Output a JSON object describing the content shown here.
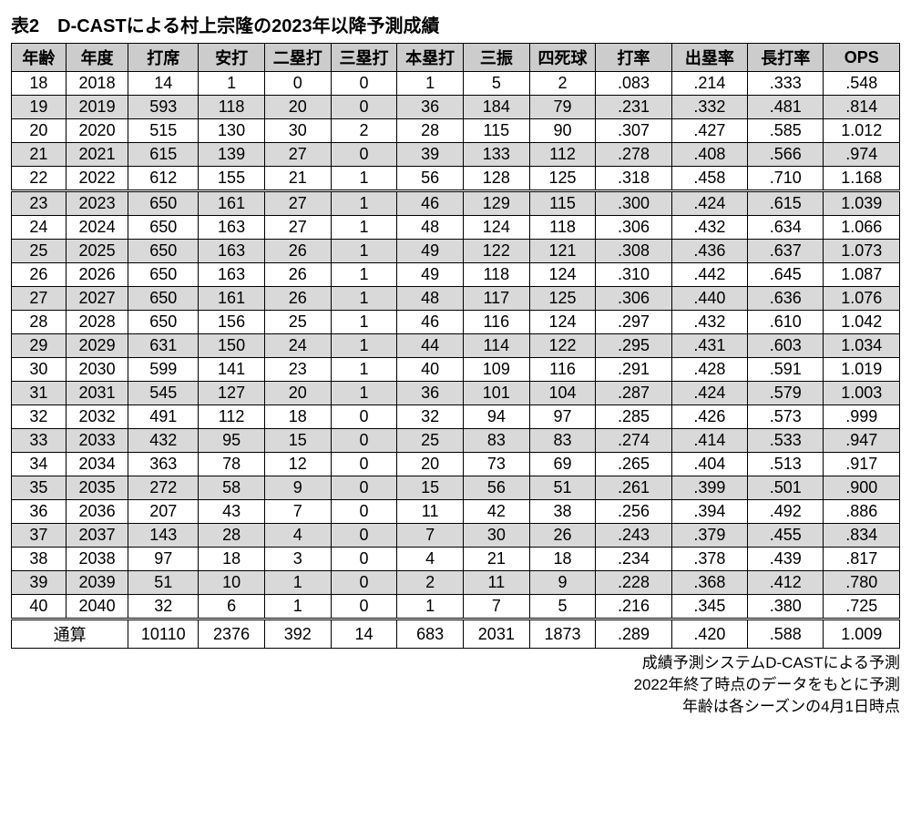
{
  "title": "表2　D-CASTによる村上宗隆の2023年以降予測成績",
  "columns": [
    "年齢",
    "年度",
    "打席",
    "安打",
    "二塁打",
    "三塁打",
    "本塁打",
    "三振",
    "四死球",
    "打率",
    "出塁率",
    "長打率",
    "OPS"
  ],
  "colClasses": [
    "age",
    "year",
    "pa",
    "num",
    "num",
    "num",
    "num",
    "num",
    "num",
    "rate",
    "rate",
    "rate",
    "rate"
  ],
  "rows": [
    {
      "shade": false,
      "c": [
        "18",
        "2018",
        "14",
        "1",
        "0",
        "0",
        "1",
        "5",
        "2",
        ".083",
        ".214",
        ".333",
        ".548"
      ]
    },
    {
      "shade": true,
      "c": [
        "19",
        "2019",
        "593",
        "118",
        "20",
        "0",
        "36",
        "184",
        "79",
        ".231",
        ".332",
        ".481",
        ".814"
      ]
    },
    {
      "shade": false,
      "c": [
        "20",
        "2020",
        "515",
        "130",
        "30",
        "2",
        "28",
        "115",
        "90",
        ".307",
        ".427",
        ".585",
        "1.012"
      ]
    },
    {
      "shade": true,
      "c": [
        "21",
        "2021",
        "615",
        "139",
        "27",
        "0",
        "39",
        "133",
        "112",
        ".278",
        ".408",
        ".566",
        ".974"
      ]
    },
    {
      "shade": false,
      "c": [
        "22",
        "2022",
        "612",
        "155",
        "21",
        "1",
        "56",
        "128",
        "125",
        ".318",
        ".458",
        ".710",
        "1.168"
      ]
    },
    {
      "shade": true,
      "section": true,
      "c": [
        "23",
        "2023",
        "650",
        "161",
        "27",
        "1",
        "46",
        "129",
        "115",
        ".300",
        ".424",
        ".615",
        "1.039"
      ]
    },
    {
      "shade": false,
      "c": [
        "24",
        "2024",
        "650",
        "163",
        "27",
        "1",
        "48",
        "124",
        "118",
        ".306",
        ".432",
        ".634",
        "1.066"
      ]
    },
    {
      "shade": true,
      "c": [
        "25",
        "2025",
        "650",
        "163",
        "26",
        "1",
        "49",
        "122",
        "121",
        ".308",
        ".436",
        ".637",
        "1.073"
      ]
    },
    {
      "shade": false,
      "c": [
        "26",
        "2026",
        "650",
        "163",
        "26",
        "1",
        "49",
        "118",
        "124",
        ".310",
        ".442",
        ".645",
        "1.087"
      ]
    },
    {
      "shade": true,
      "c": [
        "27",
        "2027",
        "650",
        "161",
        "26",
        "1",
        "48",
        "117",
        "125",
        ".306",
        ".440",
        ".636",
        "1.076"
      ]
    },
    {
      "shade": false,
      "c": [
        "28",
        "2028",
        "650",
        "156",
        "25",
        "1",
        "46",
        "116",
        "124",
        ".297",
        ".432",
        ".610",
        "1.042"
      ]
    },
    {
      "shade": true,
      "c": [
        "29",
        "2029",
        "631",
        "150",
        "24",
        "1",
        "44",
        "114",
        "122",
        ".295",
        ".431",
        ".603",
        "1.034"
      ]
    },
    {
      "shade": false,
      "c": [
        "30",
        "2030",
        "599",
        "141",
        "23",
        "1",
        "40",
        "109",
        "116",
        ".291",
        ".428",
        ".591",
        "1.019"
      ]
    },
    {
      "shade": true,
      "c": [
        "31",
        "2031",
        "545",
        "127",
        "20",
        "1",
        "36",
        "101",
        "104",
        ".287",
        ".424",
        ".579",
        "1.003"
      ]
    },
    {
      "shade": false,
      "c": [
        "32",
        "2032",
        "491",
        "112",
        "18",
        "0",
        "32",
        "94",
        "97",
        ".285",
        ".426",
        ".573",
        ".999"
      ]
    },
    {
      "shade": true,
      "c": [
        "33",
        "2033",
        "432",
        "95",
        "15",
        "0",
        "25",
        "83",
        "83",
        ".274",
        ".414",
        ".533",
        ".947"
      ]
    },
    {
      "shade": false,
      "c": [
        "34",
        "2034",
        "363",
        "78",
        "12",
        "0",
        "20",
        "73",
        "69",
        ".265",
        ".404",
        ".513",
        ".917"
      ]
    },
    {
      "shade": true,
      "c": [
        "35",
        "2035",
        "272",
        "58",
        "9",
        "0",
        "15",
        "56",
        "51",
        ".261",
        ".399",
        ".501",
        ".900"
      ]
    },
    {
      "shade": false,
      "c": [
        "36",
        "2036",
        "207",
        "43",
        "7",
        "0",
        "11",
        "42",
        "38",
        ".256",
        ".394",
        ".492",
        ".886"
      ]
    },
    {
      "shade": true,
      "c": [
        "37",
        "2037",
        "143",
        "28",
        "4",
        "0",
        "7",
        "30",
        "26",
        ".243",
        ".379",
        ".455",
        ".834"
      ]
    },
    {
      "shade": false,
      "c": [
        "38",
        "2038",
        "97",
        "18",
        "3",
        "0",
        "4",
        "21",
        "18",
        ".234",
        ".378",
        ".439",
        ".817"
      ]
    },
    {
      "shade": true,
      "c": [
        "39",
        "2039",
        "51",
        "10",
        "1",
        "0",
        "2",
        "11",
        "9",
        ".228",
        ".368",
        ".412",
        ".780"
      ]
    },
    {
      "shade": false,
      "c": [
        "40",
        "2040",
        "32",
        "6",
        "1",
        "0",
        "1",
        "7",
        "5",
        ".216",
        ".345",
        ".380",
        ".725"
      ]
    }
  ],
  "total": {
    "label": "通算",
    "c": [
      "10110",
      "2376",
      "392",
      "14",
      "683",
      "2031",
      "1873",
      ".289",
      ".420",
      ".588",
      "1.009"
    ]
  },
  "footnotes": [
    "成績予測システムD-CASTによる予測",
    "2022年終了時点のデータをもとに予測",
    "年齢は各シーズンの4月1日時点"
  ]
}
